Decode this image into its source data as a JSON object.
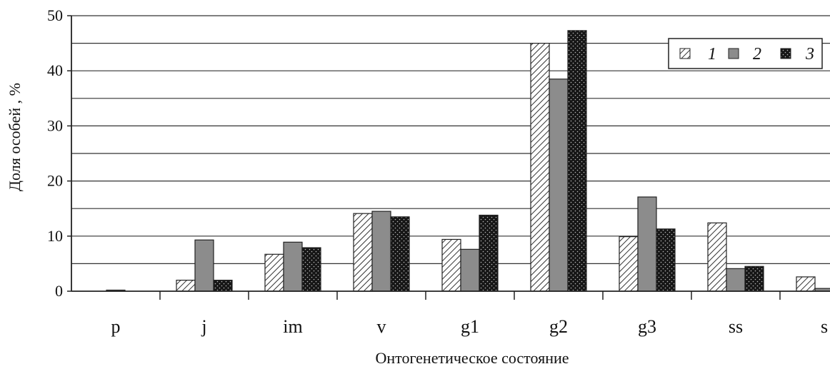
{
  "chart_data": {
    "type": "bar",
    "title": "",
    "xlabel": "Онтогенетическое состояние",
    "ylabel": "Доля особей , %",
    "ylim": [
      0,
      50
    ],
    "yticks": [
      "0",
      "10",
      "20",
      "30",
      "40",
      "50"
    ],
    "grid": true,
    "legend_position": "top-right",
    "categories": [
      "p",
      "j",
      "im",
      "v",
      "g1",
      "g2",
      "g3",
      "ss",
      "s"
    ],
    "series": [
      {
        "name": "1",
        "pattern": "hatched",
        "color": "#ffffff",
        "values": [
          0,
          2.0,
          6.7,
          14.1,
          9.4,
          45.0,
          9.9,
          12.4,
          2.6
        ]
      },
      {
        "name": "2",
        "pattern": "solid-gray",
        "color": "#8c8c8c",
        "values": [
          0.2,
          9.3,
          8.9,
          14.5,
          7.6,
          38.5,
          17.1,
          4.1,
          0.5
        ]
      },
      {
        "name": "3",
        "pattern": "dotted-black",
        "color": "#1a1a1a",
        "values": [
          0,
          2.0,
          7.9,
          13.5,
          13.8,
          47.3,
          11.3,
          4.5,
          0
        ]
      }
    ]
  }
}
